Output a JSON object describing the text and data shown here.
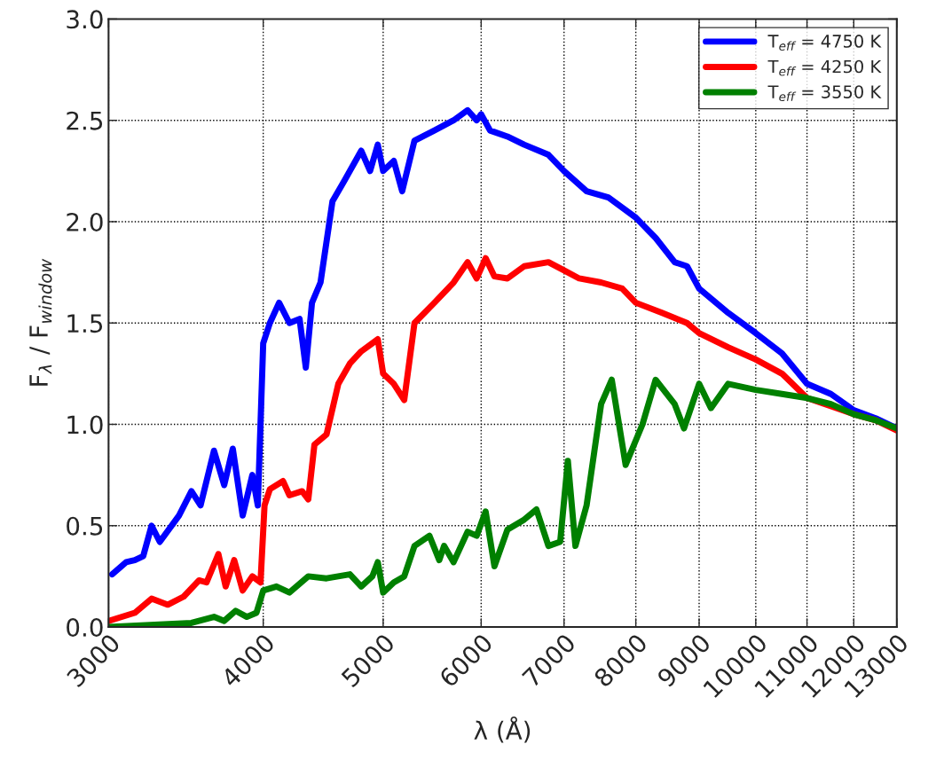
{
  "chart_data": {
    "type": "line",
    "xlabel": "λ (Å)",
    "ylabel": "F$_{λ}$ / F$_{window}$",
    "log": "x",
    "xlim": [
      3000,
      13000
    ],
    "xticks": [
      3000,
      4000,
      5000,
      6000,
      7000,
      8000,
      9000,
      10000,
      11000,
      12000,
      13000
    ],
    "ylim": [
      0,
      3.0
    ],
    "yticks": [
      {
        "value": 0,
        "label": "0.0"
      },
      0.5,
      {
        "value": 1,
        "label": "1.0"
      },
      1.5,
      {
        "value": 2,
        "label": "2.0"
      },
      2.5,
      {
        "value": 3,
        "label": "3.0"
      }
    ],
    "grid": true,
    "legend": "top right",
    "line_style": "solid",
    "marker": "none",
    "series": [
      {
        "name": "T$_{eff}$ = 4750 K",
        "color": "#0000ff",
        "x": [
          3020,
          3100,
          3150,
          3200,
          3250,
          3300,
          3420,
          3500,
          3560,
          3650,
          3720,
          3780,
          3850,
          3920,
          3960,
          4000,
          4050,
          4120,
          4200,
          4280,
          4330,
          4380,
          4450,
          4550,
          4650,
          4800,
          4880,
          4950,
          5000,
          5100,
          5180,
          5300,
          5500,
          5700,
          5850,
          5950,
          6000,
          6100,
          6300,
          6500,
          6800,
          7000,
          7300,
          7600,
          8000,
          8300,
          8600,
          8800,
          9000,
          9500,
          10000,
          10500,
          11000,
          11500,
          12000,
          12500,
          13000
        ],
        "values": [
          0.26,
          0.32,
          0.33,
          0.35,
          0.5,
          0.42,
          0.55,
          0.67,
          0.6,
          0.87,
          0.7,
          0.88,
          0.55,
          0.75,
          0.6,
          1.4,
          1.5,
          1.6,
          1.5,
          1.52,
          1.28,
          1.6,
          1.7,
          2.1,
          2.2,
          2.35,
          2.25,
          2.38,
          2.25,
          2.3,
          2.15,
          2.4,
          2.45,
          2.5,
          2.55,
          2.5,
          2.53,
          2.45,
          2.42,
          2.38,
          2.33,
          2.25,
          2.15,
          2.12,
          2.02,
          1.92,
          1.8,
          1.78,
          1.67,
          1.55,
          1.45,
          1.35,
          1.2,
          1.15,
          1.07,
          1.03,
          0.98
        ]
      },
      {
        "name": "T$_{eff}$ = 4250 K",
        "color": "#ff0000",
        "x": [
          3000,
          3150,
          3250,
          3350,
          3450,
          3550,
          3600,
          3680,
          3730,
          3790,
          3850,
          3920,
          3980,
          4010,
          4050,
          4150,
          4200,
          4300,
          4350,
          4400,
          4500,
          4600,
          4700,
          4800,
          4900,
          4950,
          5000,
          5100,
          5200,
          5300,
          5500,
          5700,
          5850,
          5950,
          6050,
          6150,
          6300,
          6500,
          6800,
          7000,
          7200,
          7500,
          7800,
          8000,
          8400,
          8800,
          9000,
          9500,
          10000,
          10500,
          11000,
          11500,
          12000,
          12500,
          13000
        ],
        "values": [
          0.03,
          0.07,
          0.14,
          0.11,
          0.15,
          0.23,
          0.22,
          0.36,
          0.2,
          0.33,
          0.18,
          0.25,
          0.22,
          0.6,
          0.68,
          0.72,
          0.65,
          0.67,
          0.63,
          0.9,
          0.95,
          1.2,
          1.3,
          1.36,
          1.4,
          1.42,
          1.25,
          1.2,
          1.12,
          1.5,
          1.6,
          1.7,
          1.8,
          1.72,
          1.82,
          1.73,
          1.72,
          1.78,
          1.8,
          1.76,
          1.72,
          1.7,
          1.67,
          1.6,
          1.55,
          1.5,
          1.45,
          1.38,
          1.32,
          1.25,
          1.13,
          1.09,
          1.05,
          1.02,
          0.97
        ]
      },
      {
        "name": "T$_{eff}$ = 3550 K",
        "color": "#008000",
        "x": [
          3000,
          3500,
          3650,
          3720,
          3800,
          3880,
          3950,
          4000,
          4100,
          4200,
          4350,
          4500,
          4700,
          4800,
          4900,
          4950,
          5000,
          5100,
          5200,
          5300,
          5450,
          5550,
          5600,
          5700,
          5850,
          5950,
          6050,
          6150,
          6300,
          6500,
          6650,
          6800,
          6950,
          7050,
          7150,
          7300,
          7500,
          7650,
          7850,
          8100,
          8300,
          8600,
          8750,
          9000,
          9200,
          9500,
          10000,
          10500,
          11000,
          11500,
          12000,
          12500,
          13000
        ],
        "values": [
          0.0,
          0.02,
          0.05,
          0.03,
          0.08,
          0.05,
          0.07,
          0.18,
          0.2,
          0.17,
          0.25,
          0.24,
          0.26,
          0.2,
          0.25,
          0.32,
          0.17,
          0.22,
          0.25,
          0.4,
          0.45,
          0.33,
          0.4,
          0.32,
          0.47,
          0.45,
          0.57,
          0.3,
          0.48,
          0.53,
          0.58,
          0.4,
          0.42,
          0.82,
          0.4,
          0.6,
          1.1,
          1.22,
          0.8,
          1.0,
          1.22,
          1.1,
          0.98,
          1.2,
          1.08,
          1.2,
          1.17,
          1.15,
          1.13,
          1.1,
          1.05,
          1.02,
          0.98
        ]
      }
    ]
  }
}
